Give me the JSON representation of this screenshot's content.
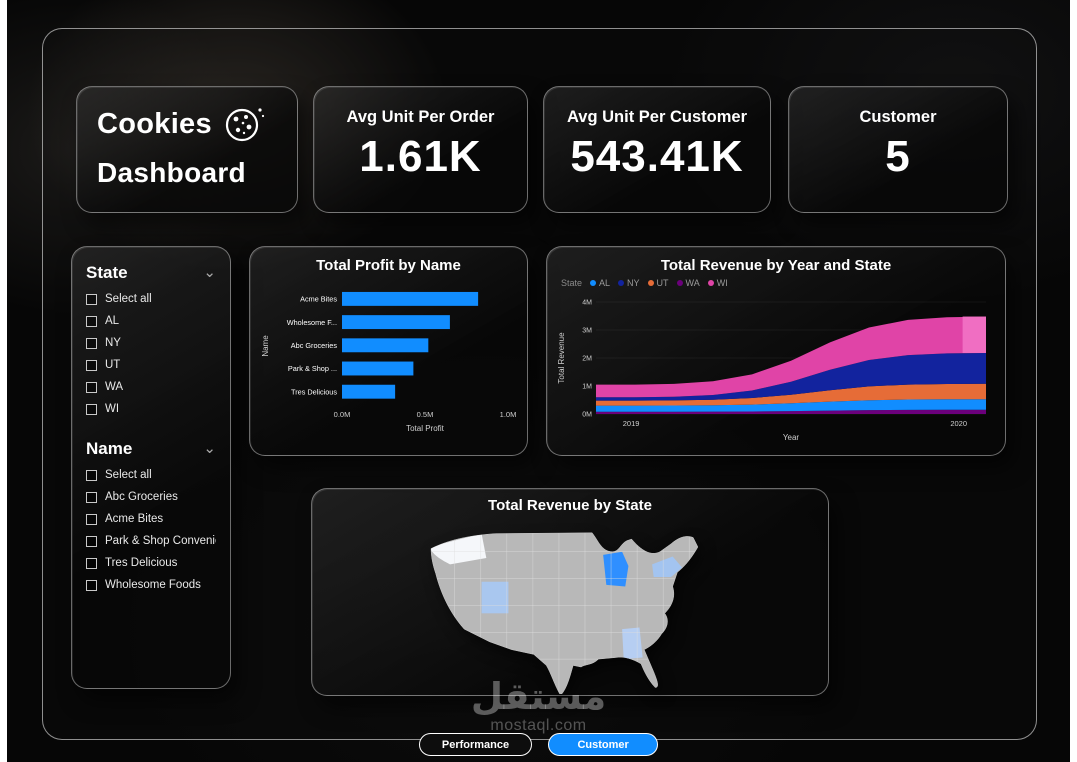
{
  "colors": {
    "accent": "#118DFF"
  },
  "header": {
    "title_card": {
      "line1": "Cookies",
      "line2": "Dashboard",
      "icon": "cookie-icon"
    },
    "kpis": [
      {
        "label": "Avg Unit Per Order",
        "value": "1.61K"
      },
      {
        "label": "Avg Unit Per Customer",
        "value": "543.41K"
      },
      {
        "label": "Customer",
        "value": "5"
      }
    ]
  },
  "filters": {
    "sections": [
      {
        "title": "State",
        "options": [
          "Select all",
          "AL",
          "NY",
          "UT",
          "WA",
          "WI"
        ]
      },
      {
        "title": "Name",
        "options": [
          "Select all",
          "Abc Groceries",
          "Acme Bites",
          "Park & Shop Convenie...",
          "Tres Delicious",
          "Wholesome Foods"
        ]
      }
    ]
  },
  "chart_data": [
    {
      "type": "bar",
      "orientation": "horizontal",
      "title": "Total Profit by Name",
      "categories": [
        "Acme Bites",
        "Wholesome F...",
        "Abc Groceries",
        "Park & Shop ...",
        "Tres Delicious"
      ],
      "values": [
        0.82,
        0.65,
        0.52,
        0.43,
        0.32
      ],
      "unit": "M",
      "xlabel": "Total Profit",
      "ylabel": "Name",
      "xlim": [
        0,
        1.0
      ],
      "x_ticks": [
        {
          "v": 0.0,
          "label": "0.0M"
        },
        {
          "v": 0.5,
          "label": "0.5M"
        },
        {
          "v": 1.0,
          "label": "1.0M"
        }
      ],
      "bar_color": "#118DFF"
    },
    {
      "type": "area",
      "title": "Total Revenue by Year and State",
      "legend_title": "State",
      "legend": [
        {
          "name": "AL",
          "color": "#118DFF"
        },
        {
          "name": "NY",
          "color": "#12239E"
        },
        {
          "name": "UT",
          "color": "#E66C37"
        },
        {
          "name": "WA",
          "color": "#6B007B"
        },
        {
          "name": "WI",
          "color": "#E044A7"
        }
      ],
      "xlabel": "Year",
      "ylabel": "Total Revenue",
      "ylim": [
        0,
        4
      ],
      "y_ticks": [
        0,
        1,
        2,
        3,
        4
      ],
      "x": [
        0,
        0.1,
        0.2,
        0.3,
        0.4,
        0.5,
        0.6,
        0.7,
        0.8,
        0.9,
        1
      ],
      "x_ticks": [
        {
          "t": 0.09,
          "label": "2019"
        },
        {
          "t": 0.93,
          "label": "2020"
        }
      ],
      "series": [
        {
          "name": "WA",
          "color": "#6B007B",
          "values": [
            0.08,
            0.08,
            0.081,
            0.084,
            0.091,
            0.105,
            0.123,
            0.139,
            0.147,
            0.149,
            0.15
          ]
        },
        {
          "name": "AL",
          "color": "#118DFF",
          "values": [
            0.22,
            0.22,
            0.222,
            0.228,
            0.244,
            0.276,
            0.319,
            0.354,
            0.372,
            0.378,
            0.38
          ]
        },
        {
          "name": "UT",
          "color": "#E66C37",
          "values": [
            0.18,
            0.18,
            0.184,
            0.199,
            0.236,
            0.31,
            0.409,
            0.491,
            0.532,
            0.546,
            0.55
          ]
        },
        {
          "name": "NY",
          "color": "#12239E",
          "values": [
            0.12,
            0.12,
            0.13,
            0.169,
            0.267,
            0.463,
            0.728,
            0.943,
            1.051,
            1.09,
            1.1
          ]
        },
        {
          "name": "WI",
          "color": "#E044A7",
          "values": [
            0.45,
            0.45,
            0.459,
            0.493,
            0.578,
            0.748,
            0.977,
            1.164,
            1.258,
            1.292,
            1.3
          ]
        }
      ],
      "highlight": {
        "series": "WI",
        "from_x": 0.94,
        "color": "#F06EC2"
      }
    },
    {
      "type": "map",
      "title": "Total Revenue by State",
      "region": "United States",
      "default_fill": "#b8b8b8",
      "border_color": "#dedede",
      "highlighted_states": [
        {
          "state": "WA",
          "fill": "#f5f7fa"
        },
        {
          "state": "UT",
          "fill": "#a9c7ef"
        },
        {
          "state": "WI",
          "fill": "#2f8fff"
        },
        {
          "state": "NY",
          "fill": "#a3c4f0"
        },
        {
          "state": "AL",
          "fill": "#b6cef2"
        }
      ]
    }
  ],
  "footer": {
    "tabs": [
      {
        "label": "Performance",
        "active": false
      },
      {
        "label": "Customer",
        "active": true
      }
    ],
    "watermark": {
      "arabic": "مستقل",
      "latin": "mostaql.com"
    }
  }
}
